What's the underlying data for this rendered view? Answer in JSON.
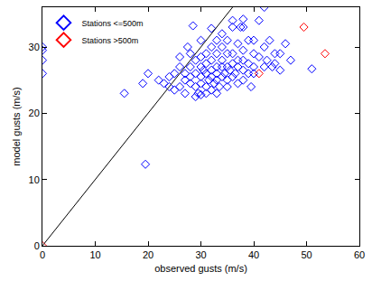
{
  "chart_data": {
    "type": "scatter",
    "x_label": "observed gusts (m/s)",
    "y_label": "model gusts (m/s)",
    "xlim": [
      0,
      60
    ],
    "ylim": [
      0,
      36
    ],
    "xticks": [
      0,
      10,
      20,
      30,
      40,
      50,
      60
    ],
    "yticks": [
      0,
      10,
      20,
      30
    ],
    "grid": false,
    "legend": "top-left",
    "series": [
      {
        "name": "Stations <=500m",
        "color": "#0000ff",
        "marker": "diamond-open",
        "x": [
          0,
          0,
          0,
          0,
          15.5,
          19.5,
          19,
          20,
          22,
          23,
          24,
          24,
          25,
          25,
          26,
          26,
          26,
          27,
          27,
          27,
          27.5,
          28,
          28,
          28,
          28,
          28.5,
          29,
          29,
          29,
          29,
          29.5,
          30,
          30,
          30,
          30,
          30,
          30,
          30.5,
          31,
          31,
          31,
          31,
          31,
          31.5,
          32,
          32,
          32,
          32,
          32,
          32,
          32.5,
          33,
          33,
          33,
          33,
          33,
          33,
          33.5,
          34,
          34,
          34,
          34,
          34,
          34.5,
          35,
          35,
          35,
          35,
          35,
          35.5,
          36,
          36,
          36,
          36,
          36.5,
          37,
          37,
          37,
          37,
          37.5,
          38,
          38,
          38,
          38,
          38,
          39,
          39,
          39,
          39.5,
          40,
          40,
          40,
          40,
          41,
          41,
          42,
          42,
          42,
          42.5,
          43,
          43.5,
          44,
          44,
          45,
          45,
          46,
          47,
          51,
          38,
          36
        ],
        "values": [
          26,
          28,
          29.5,
          30,
          23,
          12.3,
          24.5,
          26,
          25,
          24.5,
          24,
          25.5,
          23.5,
          26,
          24,
          27,
          28.5,
          23,
          25,
          26,
          30,
          24.5,
          25.5,
          27,
          29,
          33.2,
          22.5,
          24,
          26,
          28,
          23,
          22.8,
          24.5,
          25.5,
          27,
          28.5,
          31,
          26.5,
          23,
          24,
          26,
          27.5,
          29,
          25,
          23.5,
          25.5,
          26.5,
          28,
          30,
          32.8,
          24.5,
          23,
          25,
          26,
          27,
          29,
          31,
          24,
          25.5,
          27,
          28,
          30,
          32,
          26,
          24,
          25,
          27,
          29,
          31,
          26.5,
          25.5,
          27.5,
          29,
          33,
          26,
          24.5,
          27,
          28,
          30.5,
          33,
          25,
          26.5,
          28,
          29.5,
          33,
          26,
          27.5,
          31,
          24,
          26,
          27,
          29,
          31,
          28.5,
          34,
          27,
          30,
          36,
          28,
          31,
          27,
          29,
          27.5,
          26.5,
          29,
          30.5,
          28,
          26.7,
          34.2,
          34
        ]
      },
      {
        "name": "Stations >500m",
        "color": "#ff0000",
        "marker": "diamond-open",
        "x": [
          0,
          41,
          49.5,
          53.5
        ],
        "values": [
          0,
          26,
          33,
          29
        ]
      },
      {
        "type": "line",
        "color": "#000000",
        "x": [
          0,
          36
        ],
        "values": [
          0,
          36
        ]
      }
    ]
  }
}
